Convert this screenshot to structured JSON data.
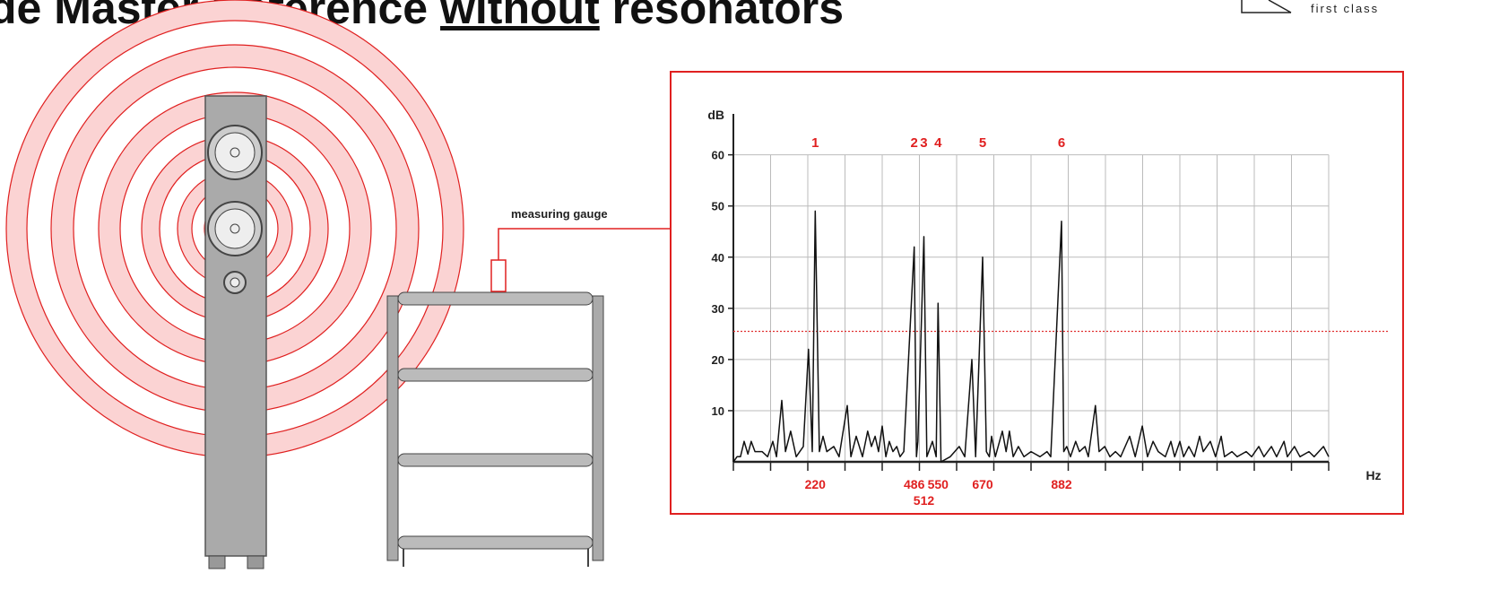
{
  "header": {
    "title_before": "de Master Reference ",
    "title_underlined": "without",
    "title_after": " resonators",
    "logo_text": "first class"
  },
  "diagram": {
    "gauge_label": "measuring gauge"
  },
  "chart_data": {
    "type": "line",
    "y_label": "dB",
    "x_label": "Hz",
    "x": [
      0,
      10,
      19,
      29,
      39,
      48,
      58,
      77,
      92,
      106,
      116,
      130,
      140,
      154,
      169,
      188,
      202,
      212,
      220,
      231,
      241,
      251,
      270,
      284,
      306,
      316,
      330,
      347,
      361,
      371,
      381,
      390,
      400,
      410,
      419,
      429,
      439,
      448,
      458,
      486,
      492,
      496,
      512,
      520,
      535,
      545,
      550,
      558,
      583,
      607,
      622,
      641,
      651,
      670,
      680,
      688,
      694,
      704,
      723,
      733,
      742,
      752,
      766,
      781,
      800,
      824,
      843,
      853,
      882,
      888,
      896,
      906,
      920,
      930,
      945,
      954,
      973,
      983,
      998,
      1012,
      1027,
      1041,
      1065,
      1080,
      1099,
      1113,
      1128,
      1142,
      1161,
      1176,
      1186,
      1200,
      1210,
      1224,
      1239,
      1253,
      1263,
      1282,
      1296,
      1311,
      1320,
      1340,
      1354,
      1378,
      1393,
      1412,
      1426,
      1446,
      1460,
      1480,
      1489,
      1508,
      1523,
      1547,
      1561,
      1586,
      1600
    ],
    "series": [
      {
        "color": "#111111",
        "values": [
          0,
          1,
          1,
          4,
          1.5,
          4,
          2,
          2,
          1,
          4,
          1,
          12,
          2,
          6,
          1,
          3,
          22,
          2,
          49,
          2,
          5,
          2,
          3,
          1,
          11,
          1,
          5,
          1,
          6,
          3,
          5,
          2,
          7,
          1,
          4,
          2,
          3,
          1,
          2,
          42,
          1,
          4,
          44,
          1,
          4,
          1,
          31,
          0,
          1,
          3,
          1,
          20,
          1,
          40,
          2,
          1,
          5,
          1,
          6,
          2,
          6,
          1,
          3,
          1,
          2,
          1,
          2,
          1,
          47,
          2,
          3,
          1,
          4,
          2,
          3,
          1,
          11,
          2,
          3,
          1,
          2,
          1,
          5,
          1,
          7,
          1,
          4,
          2,
          1,
          4,
          1,
          4,
          1,
          3,
          1,
          5,
          2,
          4,
          1,
          5,
          1,
          2,
          1,
          2,
          1,
          3,
          1,
          3,
          1,
          4,
          1,
          3,
          1,
          2,
          1,
          3,
          1
        ]
      }
    ],
    "xlim": [
      0,
      1600
    ],
    "ylim": [
      0,
      68
    ],
    "xticks": [
      0,
      100,
      200,
      300,
      400,
      500,
      600,
      700,
      800,
      900,
      1000,
      1100,
      1200,
      1300,
      1400,
      1500,
      1600
    ],
    "yticks": [
      10,
      20,
      30,
      40,
      50,
      60
    ],
    "grid": true,
    "threshold": 25.5,
    "threshold_color": "#e03030",
    "peaks": [
      {
        "label": "1",
        "hz": 220
      },
      {
        "label": "2",
        "hz": 486
      },
      {
        "label": "3",
        "hz": 512
      },
      {
        "label": "4",
        "hz": 550
      },
      {
        "label": "5",
        "hz": 670
      },
      {
        "label": "6",
        "hz": 882
      }
    ]
  }
}
